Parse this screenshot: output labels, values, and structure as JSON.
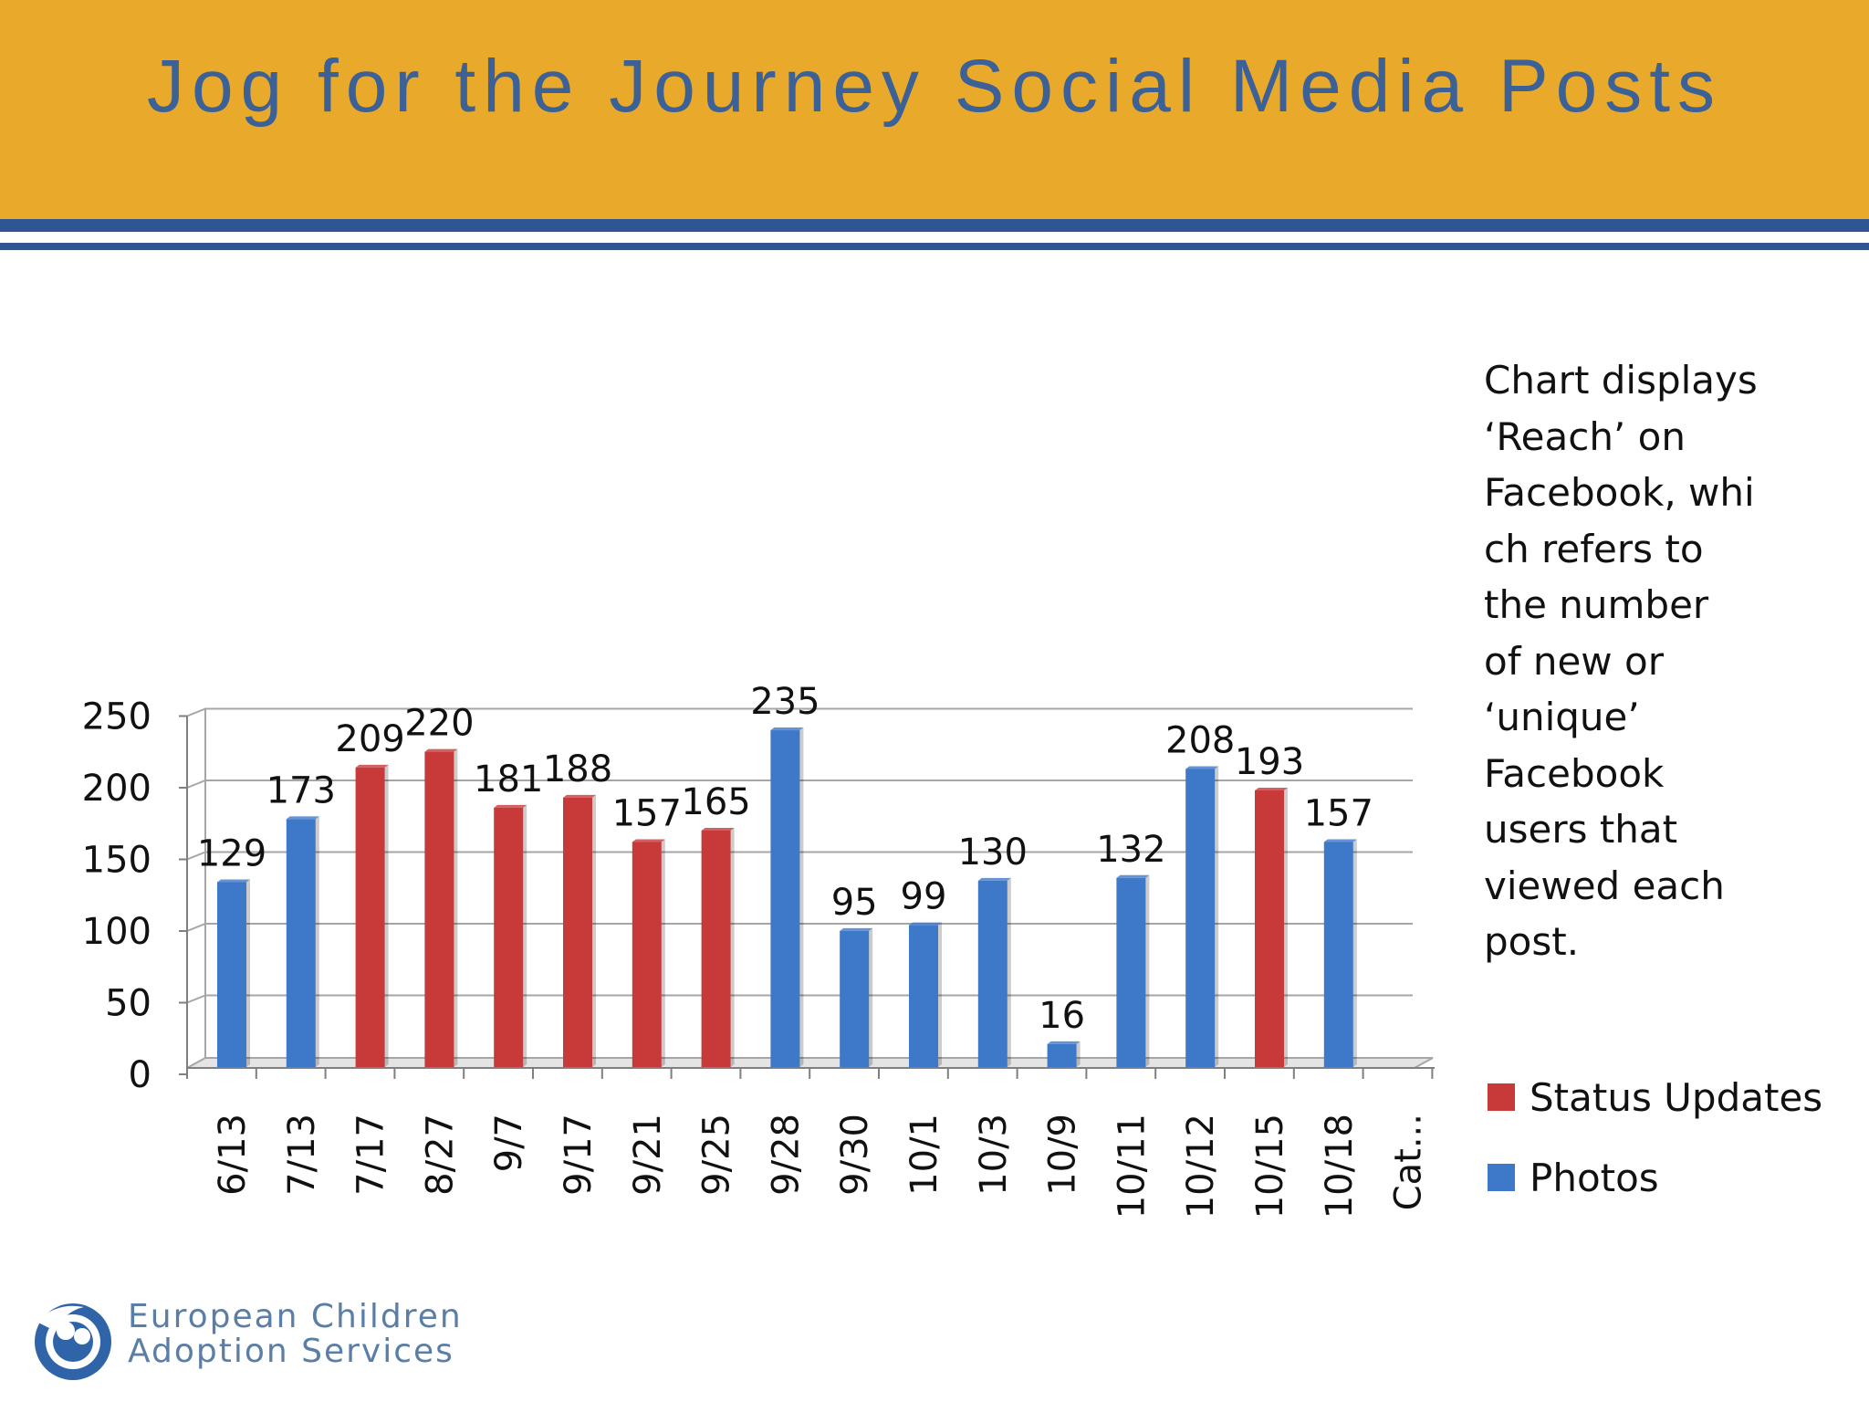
{
  "title": "Jog for the Journey Social Media Posts",
  "note": "Chart displays ‘Reach’ on Facebook, whi ch refers to the number of new or ‘unique’ Facebook users that viewed each post.",
  "note_lines": [
    "Chart displays",
    "‘Reach’ on",
    "Facebook, whi",
    "ch refers to",
    "the number",
    "of new or",
    "‘unique’",
    "Facebook",
    "users that",
    "viewed each",
    "post."
  ],
  "legend": [
    {
      "label": "Status Updates",
      "color": "#c83a3a"
    },
    {
      "label": "Photos",
      "color": "#3e78c8"
    }
  ],
  "org_lines": [
    "European Children",
    "Adoption Services"
  ],
  "colors": {
    "header": "#e9a92b",
    "title": "#3c6196",
    "rule": "#2f5592"
  },
  "chart_data": {
    "type": "bar",
    "categories": [
      "6/13",
      "7/13",
      "7/17",
      "8/27",
      "9/7",
      "9/17",
      "9/21",
      "9/25",
      "9/28",
      "9/30",
      "10/1",
      "10/3",
      "10/9",
      "10/11",
      "10/12",
      "10/15",
      "10/18",
      "Cat..."
    ],
    "values": [
      129,
      173,
      209,
      220,
      181,
      188,
      157,
      165,
      235,
      95,
      99,
      130,
      16,
      132,
      208,
      193,
      157,
      null
    ],
    "series_of_bar": [
      "Photos",
      "Photos",
      "Status Updates",
      "Status Updates",
      "Status Updates",
      "Status Updates",
      "Status Updates",
      "Status Updates",
      "Photos",
      "Photos",
      "Photos",
      "Photos",
      "Photos",
      "Photos",
      "Photos",
      "Status Updates",
      "Photos",
      null
    ],
    "series": [
      "Status Updates",
      "Photos"
    ],
    "ylim": [
      0,
      250
    ],
    "yticks": [
      0,
      50,
      100,
      150,
      200,
      250
    ],
    "grid": true,
    "legend_position": "right"
  }
}
